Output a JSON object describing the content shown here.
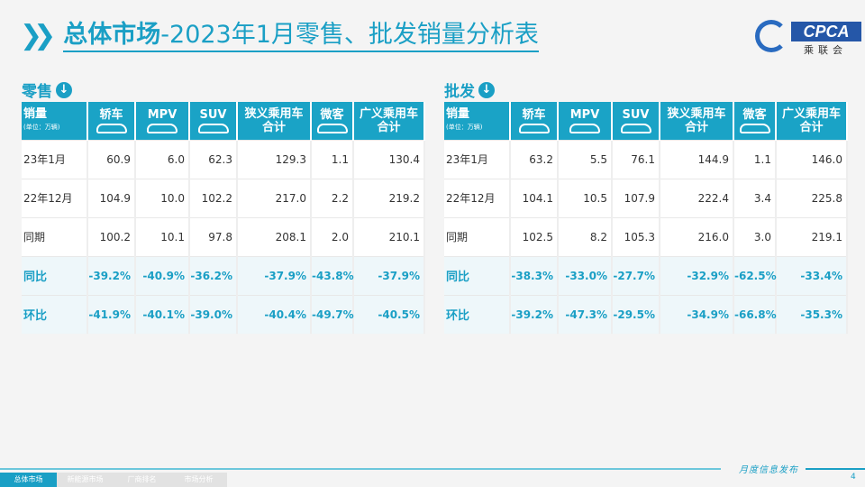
{
  "header": {
    "title_bold": "总体市场",
    "title_rest": "-2023年1月零售、批发销量分析表",
    "logo": "CPCA 乘联会"
  },
  "columns": {
    "first": "销量",
    "unit": "(单位：万辆)",
    "items": [
      "轿车",
      "MPV",
      "SUV",
      "狭义乘用车合计",
      "微客",
      "广义乘用车合计"
    ]
  },
  "retail": {
    "label": "零售",
    "rows": [
      {
        "label": "23年1月",
        "values": [
          "60.9",
          "6.0",
          "62.3",
          "129.3",
          "1.1",
          "130.4"
        ]
      },
      {
        "label": "22年12月",
        "values": [
          "104.9",
          "10.0",
          "102.2",
          "217.0",
          "2.2",
          "219.2"
        ]
      },
      {
        "label": "同期",
        "values": [
          "100.2",
          "10.1",
          "97.8",
          "208.1",
          "2.0",
          "210.1"
        ]
      },
      {
        "label": "同比",
        "values": [
          "-39.2%",
          "-40.9%",
          "-36.2%",
          "-37.9%",
          "-43.8%",
          "-37.9%"
        ]
      },
      {
        "label": "环比",
        "values": [
          "-41.9%",
          "-40.1%",
          "-39.0%",
          "-40.4%",
          "-49.7%",
          "-40.5%"
        ]
      }
    ]
  },
  "wholesale": {
    "label": "批发",
    "rows": [
      {
        "label": "23年1月",
        "values": [
          "63.2",
          "5.5",
          "76.1",
          "144.9",
          "1.1",
          "146.0"
        ]
      },
      {
        "label": "22年12月",
        "values": [
          "104.1",
          "10.5",
          "107.9",
          "222.4",
          "3.4",
          "225.8"
        ]
      },
      {
        "label": "同期",
        "values": [
          "102.5",
          "8.2",
          "105.3",
          "216.0",
          "3.0",
          "219.1"
        ]
      },
      {
        "label": "同比",
        "values": [
          "-38.3%",
          "-33.0%",
          "-27.7%",
          "-32.9%",
          "-62.5%",
          "-33.4%"
        ]
      },
      {
        "label": "环比",
        "values": [
          "-39.2%",
          "-47.3%",
          "-29.5%",
          "-34.9%",
          "-66.8%",
          "-35.3%"
        ]
      }
    ]
  },
  "footer": {
    "tabs": [
      "总体市场",
      "新能源市场",
      "厂商排名",
      "市场分析"
    ],
    "active_tab": 0,
    "monthly": "月度信息发布",
    "page": "4"
  },
  "colors": {
    "accent": "#1a9fc5"
  }
}
